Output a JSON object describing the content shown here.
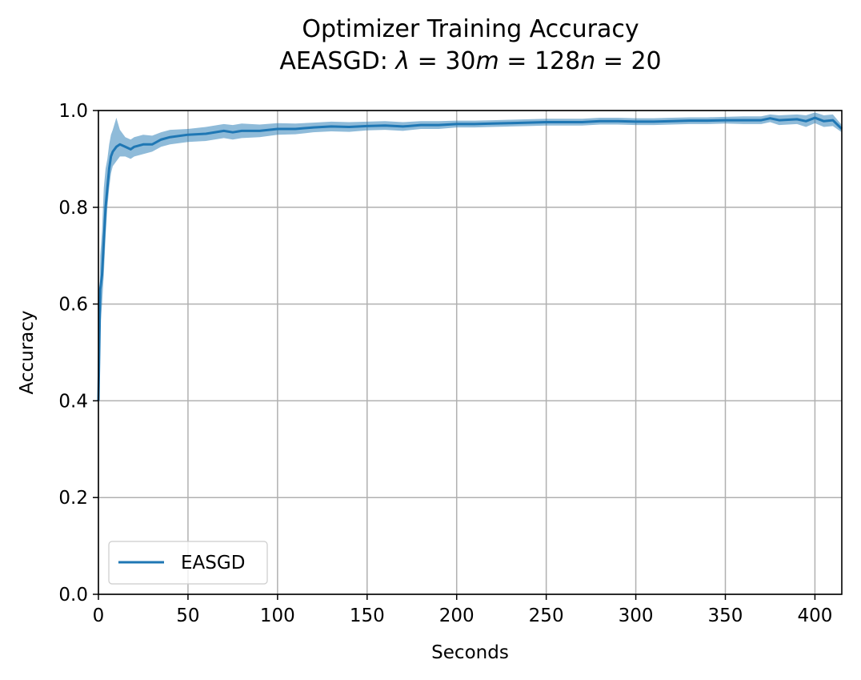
{
  "chart_data": {
    "type": "line",
    "title_line1": "Optimizer Training Accuracy",
    "title_line2": {
      "prefix": "AEASGD: ",
      "lambda_symbol": "λ",
      "lambda_value": " = 30",
      "m_symbol": "m",
      "m_value": " = 128",
      "n_symbol": "n",
      "n_value": " = 20"
    },
    "xlabel": "Seconds",
    "ylabel": "Accuracy",
    "xlim": [
      0,
      415
    ],
    "ylim": [
      0.0,
      1.0
    ],
    "xticks": [
      0,
      50,
      100,
      150,
      200,
      250,
      300,
      350,
      400
    ],
    "xtick_labels": [
      "0",
      "50",
      "100",
      "150",
      "200",
      "250",
      "300",
      "350",
      "400"
    ],
    "yticks": [
      0.0,
      0.2,
      0.4,
      0.6,
      0.8,
      1.0
    ],
    "ytick_labels": [
      "0.0",
      "0.2",
      "0.4",
      "0.6",
      "0.8",
      "1.0"
    ],
    "grid": true,
    "legend_position": "lower-left",
    "series": [
      {
        "name": "EASGD",
        "color": "#1f77b4",
        "band_color": "#1f77b4",
        "band_opacity": 0.5,
        "x": [
          0,
          1,
          2,
          3,
          4,
          5,
          6,
          7,
          8,
          10,
          12,
          15,
          18,
          20,
          25,
          30,
          35,
          40,
          50,
          60,
          70,
          75,
          80,
          90,
          100,
          110,
          120,
          130,
          140,
          150,
          160,
          170,
          180,
          190,
          200,
          210,
          220,
          230,
          240,
          250,
          260,
          270,
          280,
          290,
          300,
          310,
          320,
          330,
          340,
          350,
          360,
          370,
          375,
          380,
          390,
          395,
          400,
          405,
          410,
          415
        ],
        "y": [
          0.4,
          0.63,
          0.66,
          0.73,
          0.8,
          0.84,
          0.88,
          0.905,
          0.915,
          0.925,
          0.93,
          0.925,
          0.92,
          0.925,
          0.93,
          0.93,
          0.94,
          0.945,
          0.95,
          0.952,
          0.958,
          0.955,
          0.958,
          0.958,
          0.962,
          0.962,
          0.965,
          0.967,
          0.966,
          0.968,
          0.969,
          0.967,
          0.97,
          0.97,
          0.972,
          0.972,
          0.973,
          0.974,
          0.975,
          0.976,
          0.976,
          0.976,
          0.978,
          0.978,
          0.977,
          0.977,
          0.978,
          0.979,
          0.979,
          0.98,
          0.98,
          0.98,
          0.984,
          0.98,
          0.982,
          0.978,
          0.985,
          0.978,
          0.98,
          0.962
        ],
        "lower": [
          0.36,
          0.55,
          0.6,
          0.66,
          0.74,
          0.8,
          0.84,
          0.87,
          0.885,
          0.895,
          0.905,
          0.905,
          0.9,
          0.905,
          0.91,
          0.915,
          0.925,
          0.93,
          0.935,
          0.937,
          0.943,
          0.94,
          0.943,
          0.945,
          0.95,
          0.951,
          0.955,
          0.957,
          0.956,
          0.959,
          0.96,
          0.958,
          0.962,
          0.962,
          0.965,
          0.965,
          0.966,
          0.967,
          0.968,
          0.969,
          0.969,
          0.969,
          0.971,
          0.971,
          0.97,
          0.97,
          0.971,
          0.972,
          0.972,
          0.973,
          0.972,
          0.972,
          0.976,
          0.97,
          0.972,
          0.966,
          0.974,
          0.966,
          0.968,
          0.955
        ],
        "upper": [
          0.44,
          0.7,
          0.75,
          0.84,
          0.88,
          0.9,
          0.93,
          0.95,
          0.96,
          0.985,
          0.96,
          0.945,
          0.94,
          0.945,
          0.95,
          0.948,
          0.955,
          0.96,
          0.962,
          0.966,
          0.972,
          0.97,
          0.973,
          0.971,
          0.974,
          0.973,
          0.975,
          0.977,
          0.976,
          0.977,
          0.978,
          0.976,
          0.978,
          0.978,
          0.979,
          0.979,
          0.98,
          0.981,
          0.982,
          0.983,
          0.983,
          0.983,
          0.985,
          0.985,
          0.984,
          0.984,
          0.985,
          0.986,
          0.986,
          0.987,
          0.988,
          0.988,
          0.992,
          0.99,
          0.992,
          0.99,
          0.996,
          0.99,
          0.992,
          0.97
        ]
      }
    ]
  }
}
